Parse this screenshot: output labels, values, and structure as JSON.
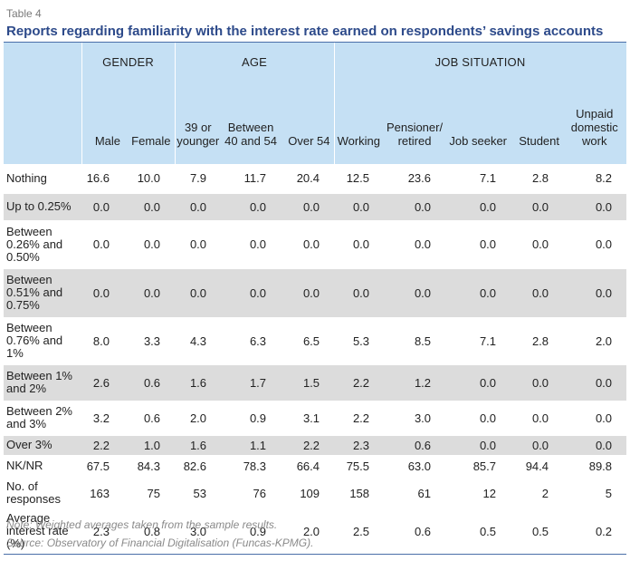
{
  "header": {
    "table_label": "Table 4",
    "title": "Reports regarding familiarity with the interest rate earned on respondents’ savings accounts"
  },
  "colors": {
    "title": "#2d4a8a",
    "header_bg": "#c5e0f4",
    "shade_bg": "#dcdcdc",
    "rule": "#4a6fa8"
  },
  "table": {
    "groups": [
      {
        "label": "GENDER",
        "span": 2
      },
      {
        "label": "AGE",
        "span": 3
      },
      {
        "label": "JOB SITUATION",
        "span": 5
      }
    ],
    "columns": [
      {
        "line1": "",
        "line2": "",
        "line3": "Male"
      },
      {
        "line1": "",
        "line2": "",
        "line3": "Female"
      },
      {
        "line1": "",
        "line2": "39 or",
        "line3": "younger"
      },
      {
        "line1": "",
        "line2": "Between",
        "line3": "40 and 54"
      },
      {
        "line1": "",
        "line2": "",
        "line3": "Over 54"
      },
      {
        "line1": "",
        "line2": "",
        "line3": "Working"
      },
      {
        "line1": "",
        "line2": "Pensioner/",
        "line3": "retired"
      },
      {
        "line1": "",
        "line2": "",
        "line3": "Job seeker"
      },
      {
        "line1": "",
        "line2": "",
        "line3": "Student"
      },
      {
        "line1": "Unpaid",
        "line2": "domestic",
        "line3": "work"
      }
    ],
    "rows": [
      {
        "label": [
          "Nothing"
        ],
        "shaded": false,
        "h": 32,
        "values": [
          "16.6",
          "10.0",
          "7.9",
          "11.7",
          "20.4",
          "12.5",
          "23.6",
          "7.1",
          "2.8",
          "8.2"
        ]
      },
      {
        "label": [
          "Up to 0.25%"
        ],
        "shaded": true,
        "h": 30,
        "values": [
          "0.0",
          "0.0",
          "0.0",
          "0.0",
          "0.0",
          "0.0",
          "0.0",
          "0.0",
          "0.0",
          "0.0"
        ]
      },
      {
        "label": [
          "Between",
          "0.26% and",
          "0.50%"
        ],
        "shaded": false,
        "h": 53,
        "values": [
          "0.0",
          "0.0",
          "0.0",
          "0.0",
          "0.0",
          "0.0",
          "0.0",
          "0.0",
          "0.0",
          "0.0"
        ]
      },
      {
        "label": [
          "Between",
          "0.51% and",
          "0.75%"
        ],
        "shaded": true,
        "h": 54,
        "values": [
          "0.0",
          "0.0",
          "0.0",
          "0.0",
          "0.0",
          "0.0",
          "0.0",
          "0.0",
          "0.0",
          "0.0"
        ]
      },
      {
        "label": [
          "Between",
          "0.76% and",
          "1%"
        ],
        "shaded": false,
        "h": 52,
        "values": [
          "8.0",
          "3.3",
          "4.3",
          "6.3",
          "6.5",
          "5.3",
          "8.5",
          "7.1",
          "2.8",
          "2.0"
        ]
      },
      {
        "label": [
          "Between 1%",
          "and 2%"
        ],
        "shaded": true,
        "h": 40,
        "values": [
          "2.6",
          "0.6",
          "1.6",
          "1.7",
          "1.5",
          "2.2",
          "1.2",
          "0.0",
          "0.0",
          "0.0"
        ]
      },
      {
        "label": [
          "Between 2%",
          "and 3%"
        ],
        "shaded": false,
        "h": 38,
        "values": [
          "3.2",
          "0.6",
          "2.0",
          "0.9",
          "3.1",
          "2.2",
          "3.0",
          "0.0",
          "0.0",
          "0.0"
        ]
      },
      {
        "label": [
          "Over 3%"
        ],
        "shaded": true,
        "h": 22,
        "values": [
          "2.2",
          "1.0",
          "1.6",
          "1.1",
          "2.2",
          "2.3",
          "0.6",
          "0.0",
          "0.0",
          "0.0"
        ]
      },
      {
        "label": [
          "NK/NR"
        ],
        "shaded": false,
        "h": 24,
        "values": [
          "67.5",
          "84.3",
          "82.6",
          "78.3",
          "66.4",
          "75.5",
          "63.0",
          "85.7",
          "94.4",
          "89.8"
        ]
      },
      {
        "label": [
          "No. of",
          "responses"
        ],
        "shaded": false,
        "h": 36,
        "values": [
          "163",
          "75",
          "53",
          "76",
          "109",
          "158",
          "61",
          "12",
          "2",
          "5"
        ]
      },
      {
        "label": [
          "Average",
          "interest rate",
          "(%)"
        ],
        "shaded": false,
        "h": 48,
        "values": [
          "2.3",
          "0.8",
          "3.0",
          "0.9",
          "2.0",
          "2.5",
          "0.6",
          "0.5",
          "0.5",
          "0.2"
        ]
      }
    ]
  },
  "notes": {
    "note": "Note: Weighted averages taken from the sample results.",
    "source": "Source: Observatory of Financial Digitalisation (Funcas-KPMG)."
  }
}
